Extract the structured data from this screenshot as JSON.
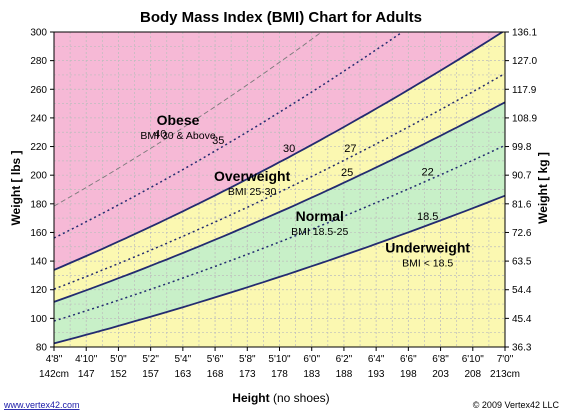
{
  "title": "Body Mass Index (BMI) Chart for Adults",
  "xlabel": "Height",
  "xlabel_suffix": "(no shoes)",
  "ylabel_left": "Weight [ lbs ]",
  "ylabel_right": "Weight [ kg ]",
  "footer_left": "www.vertex42.com",
  "footer_right": "© 2009 Vertex42 LLC",
  "colors": {
    "obese": "#f6b9d6",
    "overweight": "#fbf8b1",
    "normal": "#c8f0c8",
    "underweight": "#fbf8b1",
    "solid_line": "#232b70",
    "dotted_line": "#232b70",
    "dashed_40": "#7a7a7a",
    "grid": "#bdbdbd"
  },
  "chart_data": {
    "type": "line",
    "title": "Body Mass Index (BMI) Chart for Adults",
    "xlabel": "Height (no shoes)",
    "ylabel": "Weight [ lbs ]",
    "ylabel_right": "Weight [ kg ]",
    "x_range_in": [
      56,
      84
    ],
    "ylim": [
      80,
      300
    ],
    "grid": true,
    "x_ticks_ftin": [
      "4'8\"",
      "4'10\"",
      "5'0\"",
      "5'2\"",
      "5'4\"",
      "5'6\"",
      "5'8\"",
      "5'10\"",
      "6'0\"",
      "6'2\"",
      "6'4\"",
      "6'6\"",
      "6'8\"",
      "6'10\"",
      "7'0\""
    ],
    "x_ticks_cm": [
      "142cm",
      "147",
      "152",
      "157",
      "163",
      "168",
      "173",
      "178",
      "183",
      "188",
      "193",
      "198",
      "203",
      "208",
      "213cm"
    ],
    "y_ticks_lbs": [
      "80",
      "100",
      "120",
      "140",
      "160",
      "180",
      "200",
      "220",
      "240",
      "260",
      "280",
      "300"
    ],
    "y_ticks_kg": [
      "36.3",
      "45.4",
      "54.4",
      "63.5",
      "72.6",
      "81.6",
      "90.7",
      "99.8",
      "108.9",
      "117.9",
      "127.0",
      "136.1"
    ],
    "series": [
      {
        "bmi": 18.5,
        "label": "18.5",
        "style": "solid",
        "label_at_in": 79.2
      },
      {
        "bmi": 22,
        "label": "22",
        "style": "dotted",
        "label_at_in": 79.2
      },
      {
        "bmi": 25,
        "label": "25",
        "style": "solid",
        "label_at_in": 74.2
      },
      {
        "bmi": 27,
        "label": "27",
        "style": "dotted",
        "label_at_in": 74.4
      },
      {
        "bmi": 30,
        "label": "30",
        "style": "solid",
        "label_at_in": 70.6
      },
      {
        "bmi": 35,
        "label": "35",
        "style": "dotted",
        "label_at_in": 66.2
      },
      {
        "bmi": 40,
        "label": "40",
        "style": "dashed",
        "label_at_in": 62.6
      }
    ],
    "regions": [
      {
        "name": "Obese",
        "subtitle": "BMI 30 & Above",
        "anchor_in": 63.7,
        "anchor_lbs": 235
      },
      {
        "name": "Overweight",
        "subtitle": "BMI 25-30",
        "anchor_in": 68.3,
        "anchor_lbs": 196
      },
      {
        "name": "Normal",
        "subtitle": "BMI 18.5-25",
        "anchor_in": 72.5,
        "anchor_lbs": 168
      },
      {
        "name": "Underweight",
        "subtitle": "BMI < 18.5",
        "anchor_in": 79.2,
        "anchor_lbs": 146
      }
    ]
  }
}
